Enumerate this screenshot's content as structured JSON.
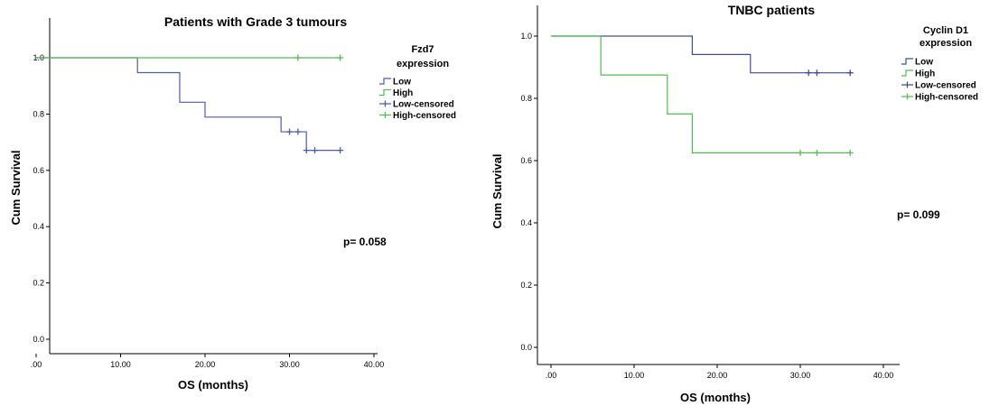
{
  "chart_data": [
    {
      "type": "line",
      "title": "Patients with Grade 3 tumours",
      "xlabel": "OS (months)",
      "ylabel": "Cum Survival",
      "xlim": [
        0,
        40
      ],
      "ylim": [
        0,
        1
      ],
      "xticks": [
        0,
        10,
        20,
        30,
        40
      ],
      "xtick_labels": [
        ".00",
        "10.00",
        "20.00",
        "30.00",
        "40.00"
      ],
      "yticks": [
        0,
        0.2,
        0.4,
        0.6,
        0.8,
        1.0
      ],
      "ytick_labels": [
        "0.0",
        "0.2",
        "0.4",
        "0.6",
        "0.8",
        "1.0"
      ],
      "grid": false,
      "legend_title": [
        "Fzd7",
        "expression"
      ],
      "legend_placement": "top-right",
      "annotation": "p= 0.058",
      "series": [
        {
          "name": "Low",
          "censored_name": "Low-censored",
          "color": "#4a5fa8",
          "steps": [
            [
              0,
              1.0
            ],
            [
              12,
              0.947
            ],
            [
              17,
              0.842
            ],
            [
              20,
              0.789
            ],
            [
              29,
              0.737
            ],
            [
              32,
              0.671
            ],
            [
              36,
              0.671
            ]
          ],
          "censored": [
            [
              30,
              0.737
            ],
            [
              31,
              0.737
            ],
            [
              32,
              0.671
            ],
            [
              33,
              0.671
            ],
            [
              36,
              0.671
            ]
          ]
        },
        {
          "name": "High",
          "censored_name": "High-censored",
          "color": "#4fbf4f",
          "steps": [
            [
              0,
              1.0
            ],
            [
              36,
              1.0
            ]
          ],
          "censored": [
            [
              31,
              1.0
            ],
            [
              36,
              1.0
            ]
          ]
        }
      ]
    },
    {
      "type": "line",
      "title": "TNBC patients",
      "xlabel": "OS (months)",
      "ylabel": "Cum Survival",
      "xlim": [
        0,
        40
      ],
      "ylim": [
        0,
        1
      ],
      "xticks": [
        0,
        10,
        20,
        30,
        40
      ],
      "xtick_labels": [
        ".00",
        "10.00",
        "20.00",
        "30.00",
        "40.00"
      ],
      "yticks": [
        0,
        0.2,
        0.4,
        0.6,
        0.8,
        1.0
      ],
      "ytick_labels": [
        "0.0",
        "0.2",
        "0.4",
        "0.6",
        "0.8",
        "1.0"
      ],
      "grid": false,
      "legend_title": [
        "Cyclin D1",
        "expression"
      ],
      "legend_placement": "top-right",
      "annotation": "p= 0.099",
      "series": [
        {
          "name": "Low",
          "censored_name": "Low-censored",
          "color": "#3e4f96",
          "steps": [
            [
              0,
              1.0
            ],
            [
              17,
              0.941
            ],
            [
              24,
              0.882
            ],
            [
              36,
              0.882
            ]
          ],
          "censored": [
            [
              31,
              0.882
            ],
            [
              32,
              0.882
            ],
            [
              36,
              0.882
            ]
          ]
        },
        {
          "name": "High",
          "censored_name": "High-censored",
          "color": "#4fbf4f",
          "steps": [
            [
              0,
              1.0
            ],
            [
              6,
              0.875
            ],
            [
              14,
              0.75
            ],
            [
              17,
              0.625
            ],
            [
              36,
              0.625
            ]
          ],
          "censored": [
            [
              30,
              0.625
            ],
            [
              32,
              0.625
            ],
            [
              36,
              0.625
            ]
          ]
        }
      ]
    }
  ]
}
